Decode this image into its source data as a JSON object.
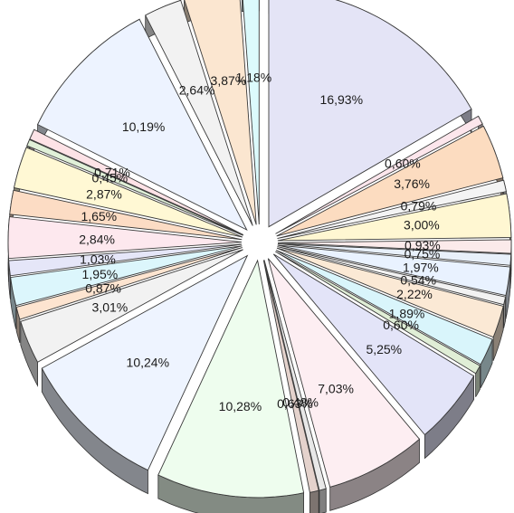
{
  "chart_data": {
    "type": "pie",
    "style": "3d-exploded",
    "title": "",
    "legend": "none",
    "slices": [
      {
        "label": "16,93%",
        "value": 16.93,
        "color": "#e4e4f6"
      },
      {
        "label": "0,60%",
        "value": 0.6,
        "color": "#fde6ec"
      },
      {
        "label": "3,76%",
        "value": 3.76,
        "color": "#fcdcc0"
      },
      {
        "label": "0,79%",
        "value": 0.79,
        "color": "#f4f4f4"
      },
      {
        "label": "3,00%",
        "value": 3.0,
        "color": "#fff7d2"
      },
      {
        "label": "0,93%",
        "value": 0.93,
        "color": "#fbeaea"
      },
      {
        "label": "0,75%",
        "value": 0.75,
        "color": "#e8f0fa"
      },
      {
        "label": "1,97%",
        "value": 1.97,
        "color": "#e9f2ff"
      },
      {
        "label": "0,54%",
        "value": 0.54,
        "color": "#f2f2f2"
      },
      {
        "label": "2,22%",
        "value": 2.22,
        "color": "#fbe9d5"
      },
      {
        "label": "1,89%",
        "value": 1.89,
        "color": "#d9f5fb"
      },
      {
        "label": "0,60%",
        "value": 0.6,
        "color": "#e0eed6"
      },
      {
        "label": "5,25%",
        "value": 5.25,
        "color": "#e3e4f8"
      },
      {
        "label": "7,03%",
        "value": 7.03,
        "color": "#fdeef2"
      },
      {
        "label": "0,48%",
        "value": 0.48,
        "color": "#e8e8e8"
      },
      {
        "label": "0,63%",
        "value": 0.63,
        "color": "#e4d2cc"
      },
      {
        "label": "10,28%",
        "value": 10.28,
        "color": "#eefdee"
      },
      {
        "label": "10,24%",
        "value": 10.24,
        "color": "#eef4ff"
      },
      {
        "label": "3,01%",
        "value": 3.01,
        "color": "#f2f2f2"
      },
      {
        "label": "0,87%",
        "value": 0.87,
        "color": "#fde4d0"
      },
      {
        "label": "1,95%",
        "value": 1.95,
        "color": "#dcf6fc"
      },
      {
        "label": "1,03%",
        "value": 1.03,
        "color": "#e5e6f8"
      },
      {
        "label": "2,84%",
        "value": 2.84,
        "color": "#fde8ee"
      },
      {
        "label": "1,65%",
        "value": 1.65,
        "color": "#fcdcc4"
      },
      {
        "label": "2,87%",
        "value": 2.87,
        "color": "#fff8d4"
      },
      {
        "label": "0,45%",
        "value": 0.45,
        "color": "#e0f0d8"
      },
      {
        "label": "0,71%",
        "value": 0.71,
        "color": "#fde2e6"
      },
      {
        "label": "10,19%",
        "value": 10.19,
        "color": "#edf3ff"
      },
      {
        "label": "2,64%",
        "value": 2.64,
        "color": "#f2f2f2"
      },
      {
        "label": "3,87%",
        "value": 3.87,
        "color": "#fbe6d0"
      },
      {
        "label": "1,18%",
        "value": 1.18,
        "color": "#dcfafc"
      }
    ]
  }
}
